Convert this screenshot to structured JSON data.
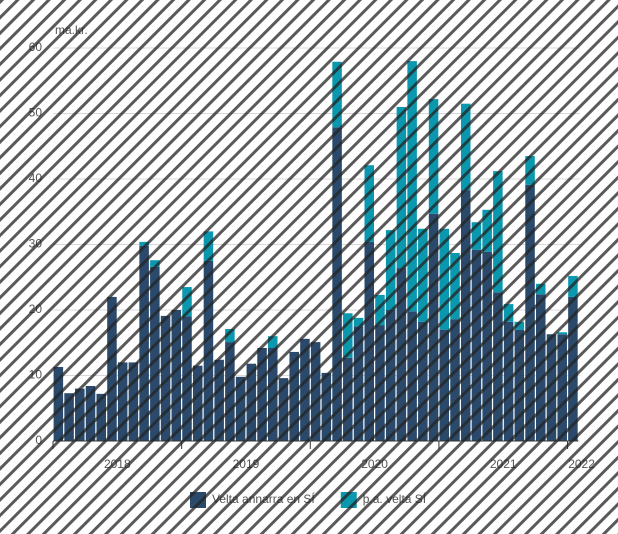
{
  "chart_data": {
    "type": "stacked-bar",
    "y_unit_label": "ma.kr.",
    "categories": [
      null,
      null,
      null,
      null,
      null,
      null,
      null,
      null,
      null,
      null,
      null,
      null,
      null,
      null,
      null,
      null,
      null,
      null,
      null,
      null,
      null,
      null,
      null,
      null,
      null,
      null,
      null,
      null,
      null,
      null,
      null,
      null,
      null,
      null,
      null,
      null,
      null,
      null,
      null,
      null,
      null,
      null,
      null,
      null,
      null,
      null,
      null,
      null,
      null
    ],
    "year_labels": [
      "2018",
      "2019",
      "2020",
      "2021",
      "2022"
    ],
    "series": [
      {
        "name": "Velta annarra en SÍ",
        "color": "#2b4a6b",
        "values": [
          11.3,
          7.3,
          8,
          8.4,
          7.2,
          22,
          12,
          12,
          29.8,
          26.6,
          19.1,
          20,
          19,
          11.5,
          27.5,
          12.4,
          15.1,
          9.8,
          11.8,
          14.2,
          14.2,
          9.6,
          13.6,
          15.6,
          15.1,
          10.4,
          47.9,
          12.7,
          17.5,
          30.4,
          17.7,
          20,
          26.4,
          19.8,
          18.2,
          34.7,
          17,
          18.6,
          38.3,
          29.2,
          28.9,
          22.7,
          18.2,
          17,
          39.1,
          22.4,
          16.3,
          16.3,
          22
        ]
      },
      {
        "name": "þ.a. velta SÍ",
        "color": "#0b97ad",
        "values": [
          0,
          0,
          0,
          0,
          0,
          0,
          0,
          0,
          0.6,
          1,
          0,
          0,
          4.5,
          0,
          4.5,
          0,
          2,
          0,
          0,
          0,
          1.8,
          0,
          0,
          0,
          0,
          0,
          10,
          6.8,
          1.3,
          11.7,
          4.6,
          12.2,
          24.6,
          38.2,
          14.2,
          17.5,
          15.4,
          10.1,
          13.2,
          4.2,
          6.4,
          18.5,
          2.7,
          1.2,
          4.4,
          1.6,
          0,
          0.3,
          3.2
        ]
      }
    ],
    "ylim": [
      0,
      60
    ],
    "yticks": [
      0,
      10,
      20,
      30,
      40,
      50,
      60
    ],
    "grid": true
  }
}
